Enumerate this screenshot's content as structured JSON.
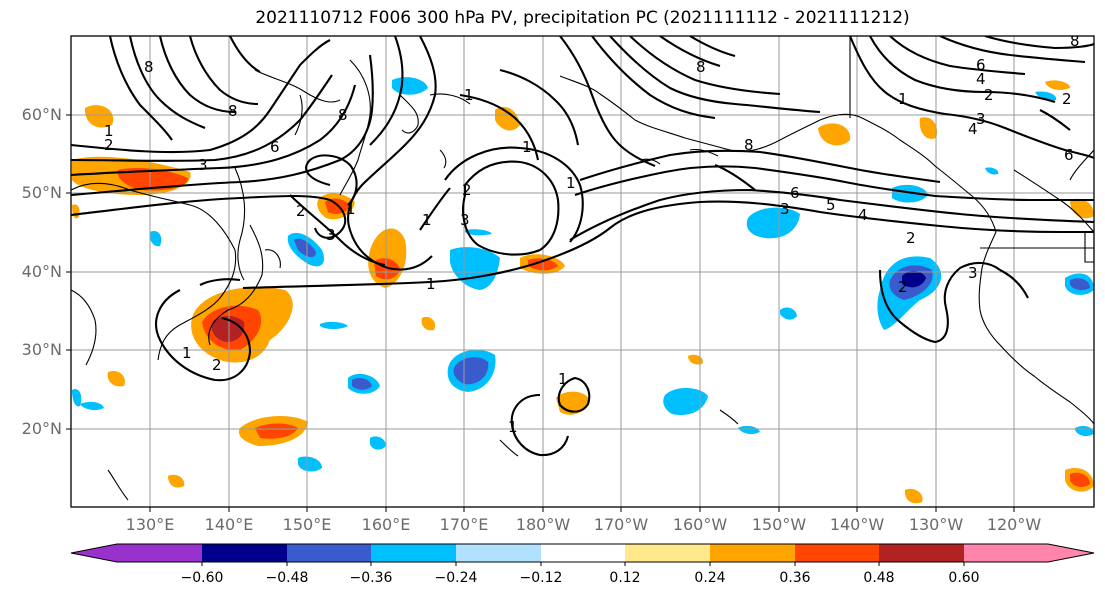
{
  "title": "2021110712 F006 300 hPa PV, precipitation PC (2021111112 - 2021111212)",
  "lat_labels": [
    "60°N",
    "50°N",
    "40°N",
    "30°N",
    "20°N"
  ],
  "lon_labels": [
    "130°E",
    "140°E",
    "150°E",
    "160°E",
    "170°E",
    "180°W",
    "170°W",
    "160°W",
    "150°W",
    "140°W",
    "130°W",
    "120°W"
  ],
  "colorbar": {
    "colors": [
      "#9932cc",
      "#00008b",
      "#3a5bcc",
      "#00bfff",
      "#b0e2ff",
      "#ffffff",
      "#ffe98a",
      "#ffa500",
      "#ff4500",
      "#b22222",
      "#ff85ad"
    ],
    "ticks": [
      "−0.60",
      "−0.48",
      "−0.36",
      "−0.24",
      "−0.12",
      "0.12",
      "0.24",
      "0.36",
      "0.48",
      "0.60"
    ]
  },
  "contour_labels": [
    "1",
    "2",
    "3",
    "4",
    "5",
    "6",
    "8"
  ],
  "colors": {
    "frame": "#000000",
    "grid": "#9a9a9a",
    "tick_text": "#6b6b6b"
  }
}
